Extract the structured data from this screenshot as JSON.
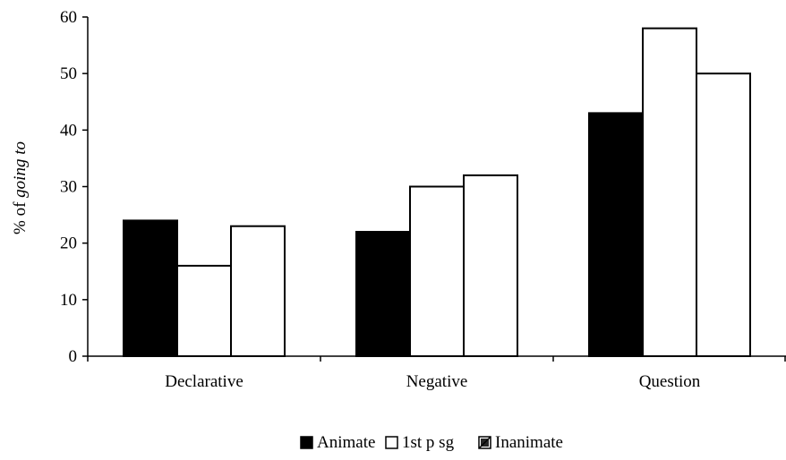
{
  "chart_data": {
    "type": "bar",
    "categories": [
      "Declarative",
      "Negative",
      "Question"
    ],
    "series": [
      {
        "name": "Animate",
        "values": [
          24,
          22,
          43
        ],
        "fill": "#000000"
      },
      {
        "name": "1st p sg",
        "values": [
          16,
          30,
          58
        ],
        "fill": "#ffffff"
      },
      {
        "name": "Inanimate",
        "values": [
          23,
          32,
          50
        ],
        "fill": "#ffffff"
      }
    ],
    "title": "",
    "xlabel": "",
    "ylabel_prefix": "% of ",
    "ylabel_emph": "going to",
    "ylim": [
      0,
      60
    ],
    "yticks": [
      0,
      10,
      20,
      30,
      40,
      50,
      60
    ],
    "grid": false,
    "legend_position": "bottom"
  }
}
